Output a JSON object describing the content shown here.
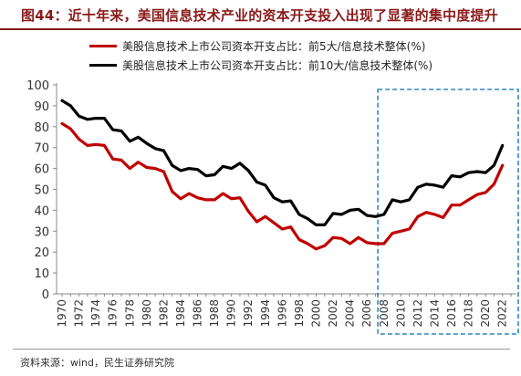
{
  "title": "图44：近十年来，美国信息技术产业的资本开支投入出现了显著的集中度提升",
  "source": "资料来源：wind，民生证券研究院",
  "chart_data": {
    "type": "line",
    "title": "",
    "xlabel": "",
    "ylabel": "",
    "ylim": [
      0,
      100
    ],
    "yticks": [
      0,
      10,
      20,
      30,
      40,
      50,
      60,
      70,
      80,
      90,
      100
    ],
    "xlim": [
      1970,
      2023
    ],
    "xticks": [
      1970,
      1972,
      1974,
      1976,
      1978,
      1980,
      1982,
      1984,
      1986,
      1988,
      1990,
      1992,
      1994,
      1996,
      1998,
      2000,
      2002,
      2004,
      2006,
      2008,
      2010,
      2012,
      2014,
      2016,
      2018,
      2020,
      2022
    ],
    "grid": false,
    "legend_position": "top",
    "highlight_box": {
      "x_from": 2007.5,
      "x_to": 2023.5,
      "style": "dashed",
      "color": "#2e86c1"
    },
    "series": [
      {
        "name": "美股信息技术上市公司资本开支占比：前5大/信息技术整体(%)",
        "color": "#c00000",
        "x": [
          1970,
          1971,
          1972,
          1973,
          1974,
          1975,
          1976,
          1977,
          1978,
          1979,
          1980,
          1981,
          1982,
          1983,
          1984,
          1985,
          1986,
          1987,
          1988,
          1989,
          1990,
          1991,
          1992,
          1993,
          1994,
          1995,
          1996,
          1997,
          1998,
          1999,
          2000,
          2001,
          2002,
          2003,
          2004,
          2005,
          2006,
          2007,
          2008,
          2009,
          2010,
          2011,
          2012,
          2013,
          2014,
          2015,
          2016,
          2017,
          2018,
          2019,
          2020,
          2021,
          2022
        ],
        "values": [
          81.5,
          79,
          74,
          71,
          71.5,
          71,
          64.5,
          64,
          60,
          63,
          60.5,
          60,
          58.5,
          49,
          45.5,
          48,
          46,
          45,
          45,
          48,
          45.5,
          46,
          39.5,
          34.5,
          37,
          34,
          31,
          32,
          26,
          24,
          21.5,
          23,
          27,
          26.5,
          24,
          27,
          24.5,
          24,
          24,
          29,
          30,
          31,
          37,
          39,
          38,
          36.5,
          42.5,
          42.5,
          45,
          47.5,
          48.5,
          52.5,
          61.5
        ]
      },
      {
        "name": "美股信息技术上市公司资本开支占比：前10大/信息技术整体(%)",
        "color": "#000000",
        "x": [
          1970,
          1971,
          1972,
          1973,
          1974,
          1975,
          1976,
          1977,
          1978,
          1979,
          1980,
          1981,
          1982,
          1983,
          1984,
          1985,
          1986,
          1987,
          1988,
          1989,
          1990,
          1991,
          1992,
          1993,
          1994,
          1995,
          1996,
          1997,
          1998,
          1999,
          2000,
          2001,
          2002,
          2003,
          2004,
          2005,
          2006,
          2007,
          2008,
          2009,
          2010,
          2011,
          2012,
          2013,
          2014,
          2015,
          2016,
          2017,
          2018,
          2019,
          2020,
          2021,
          2022
        ],
        "values": [
          92.5,
          90,
          85,
          83.5,
          84,
          84,
          78.5,
          78,
          73,
          75,
          72,
          69.5,
          68.5,
          61.5,
          59,
          60,
          59.5,
          56.5,
          57,
          61,
          60,
          62.5,
          59,
          53.5,
          52,
          46,
          44,
          44.5,
          38,
          36,
          33,
          33,
          38.5,
          38,
          40,
          40.5,
          37.5,
          37,
          38,
          45,
          44,
          45,
          51,
          52.5,
          52,
          51,
          56.5,
          56,
          58,
          58.5,
          58,
          61.5,
          71
        ]
      }
    ]
  }
}
